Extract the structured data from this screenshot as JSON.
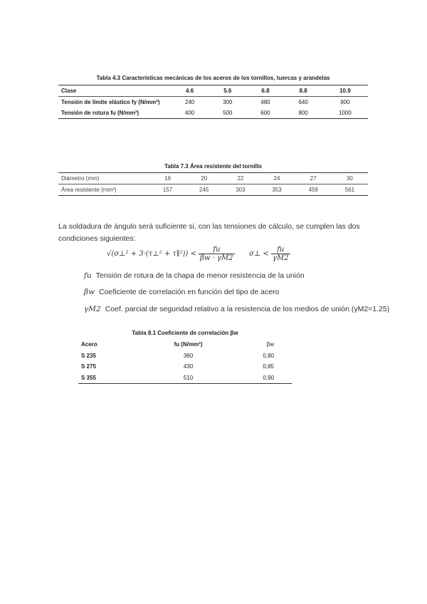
{
  "table1": {
    "caption": "Tabla 4.3 Características mecánicas de los aceros de los tornillos, tuercas y arandelas",
    "header": [
      "Clase",
      "4.6",
      "5.6",
      "6.8",
      "8.8",
      "10.9"
    ],
    "rows": [
      [
        "Tensión de límite elástico fy (N/mm²)",
        "240",
        "300",
        "480",
        "640",
        "900"
      ],
      [
        "Tensión de rotura fu (N/mm²)",
        "400",
        "500",
        "600",
        "800",
        "1000"
      ]
    ]
  },
  "table2": {
    "caption": "Tabla 7.3 Área resistente del tornillo",
    "header": [
      "Diámetro (mm)",
      "16",
      "20",
      "22",
      "24",
      "27",
      "30"
    ],
    "rows": [
      [
        "Área resistente (mm²)",
        "157",
        "245",
        "303",
        "353",
        "459",
        "561"
      ]
    ]
  },
  "text": {
    "paragraph": "La soldadura de ángulo será suficiente si, con las tensiones de cálculo, se cumplen las dos condiciones siguientes:",
    "formula1_left": "√(σ⊥² + 3·(τ⊥² + τ∥²)) <",
    "formula1_num": "fu",
    "formula1_den": "βw · γM2",
    "formula2_left": "σ⊥ <",
    "formula2_num": "fu",
    "formula2_den": "γM2",
    "defs": [
      {
        "symbol": "fu",
        "text": "Tensión de rotura de la chapa de menor resistencia de la unión"
      },
      {
        "symbol": "βw",
        "text": "Coeficiente de correlación en función del tipo de acero"
      },
      {
        "symbol": "γM2",
        "text": "Coef. parcial de seguridad relativo a la resistencia de los medios de unión (γM2=1.25)"
      }
    ]
  },
  "table3": {
    "caption": "Tabla 8.1 Coeficiente de correlación βw",
    "header": [
      "Acero",
      "fu (N/mm²)",
      "βw"
    ],
    "rows": [
      [
        "S 235",
        "360",
        "0,80"
      ],
      [
        "S 275",
        "430",
        "0,85"
      ],
      [
        "S 355",
        "510",
        "0,90"
      ]
    ]
  }
}
